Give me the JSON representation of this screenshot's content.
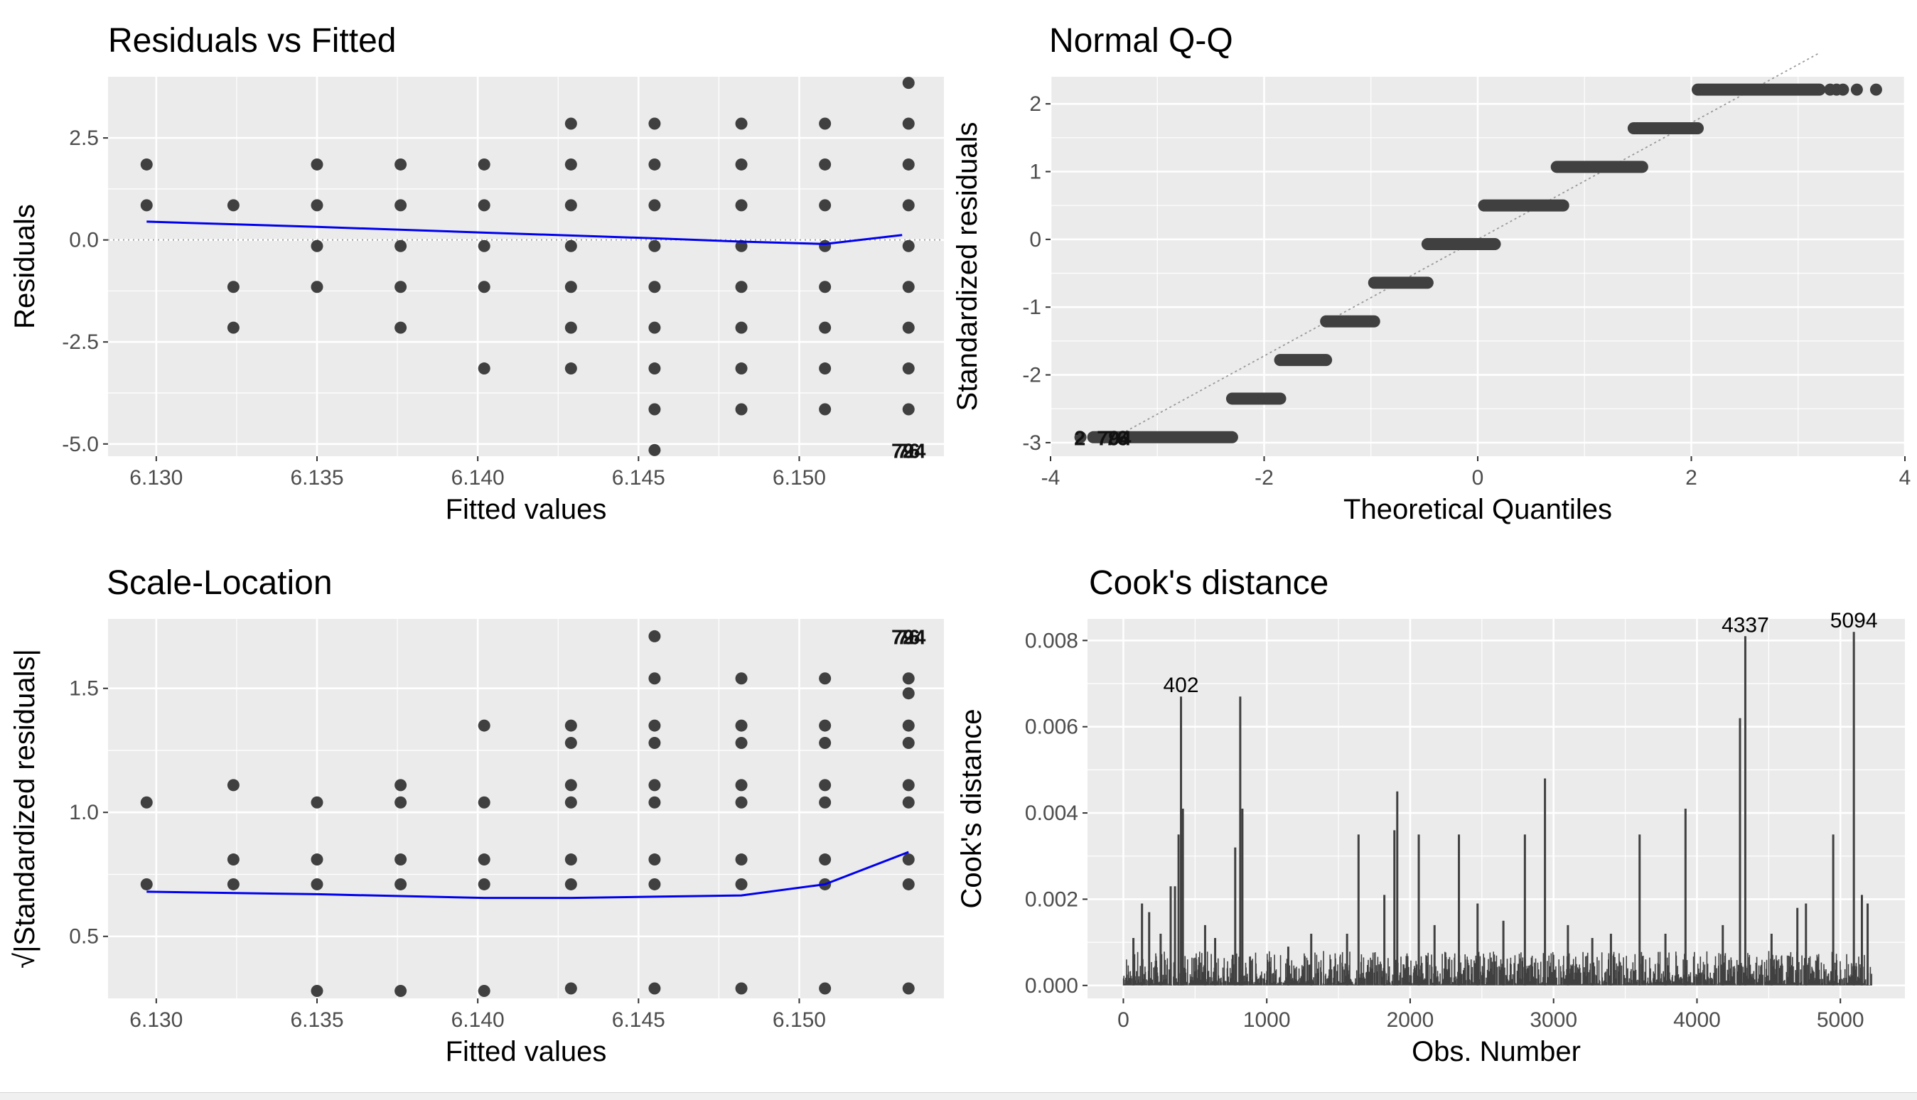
{
  "panels": [
    {
      "title": "Residuals vs Fitted",
      "xlabel": "Fitted values",
      "ylabel": "Residuals",
      "x_ticks": [
        "6.130",
        "6.135",
        "6.140",
        "6.145",
        "6.150"
      ],
      "y_ticks": [
        "2.5",
        "0.0",
        "-2.5",
        "-5.0"
      ],
      "point_labels": [
        "2",
        "794",
        "76"
      ]
    },
    {
      "title": "Normal Q-Q",
      "xlabel": "Theoretical Quantiles",
      "ylabel": "Standardized residuals",
      "x_ticks": [
        "-4",
        "-2",
        "0",
        "2",
        "4"
      ],
      "y_ticks": [
        "2",
        "1",
        "0",
        "-1",
        "-2",
        "-3"
      ],
      "point_labels": [
        "2",
        "794",
        "76"
      ]
    },
    {
      "title": "Scale-Location",
      "xlabel": "Fitted values",
      "ylabel": "√|Standardized residuals|",
      "x_ticks": [
        "6.130",
        "6.135",
        "6.140",
        "6.145",
        "6.150"
      ],
      "y_ticks": [
        "1.5",
        "1.0",
        "0.5"
      ],
      "point_labels": [
        "2",
        "794",
        "76"
      ]
    },
    {
      "title": "Cook's distance",
      "xlabel": "Obs. Number",
      "ylabel": "Cook's distance",
      "x_ticks": [
        "0",
        "1000",
        "2000",
        "3000",
        "4000",
        "5000"
      ],
      "y_ticks": [
        "0.008",
        "0.006",
        "0.004",
        "0.002",
        "0.000"
      ],
      "point_labels": [
        "402",
        "4337",
        "5094"
      ]
    }
  ],
  "colors": {
    "panel_bg": "#ebebeb",
    "grid": "#ffffff",
    "points": "#404040",
    "smooth_line": "#0000ee",
    "reference_line": "#999999",
    "text": "#1a1a1a",
    "tick_text": "#4d4d4d"
  },
  "chart_data": [
    {
      "type": "scatter",
      "title": "Residuals vs Fitted",
      "xlabel": "Fitted values",
      "ylabel": "Residuals",
      "xlim": [
        6.1285,
        6.1545
      ],
      "ylim": [
        -5.3,
        4.0
      ],
      "reference_line": {
        "type": "horizontal",
        "y": 0,
        "style": "dotted"
      },
      "smooth": {
        "x": [
          6.1297,
          6.135,
          6.1402,
          6.1455,
          6.1482,
          6.1508,
          6.1532
        ],
        "y": [
          0.45,
          0.32,
          0.18,
          0.04,
          -0.04,
          -0.1,
          0.12
        ]
      },
      "points": [
        {
          "x": 6.1297,
          "y": [
            1.85,
            0.85
          ]
        },
        {
          "x": 6.1324,
          "y": [
            0.85,
            -1.15,
            -2.15
          ]
        },
        {
          "x": 6.135,
          "y": [
            1.85,
            0.85,
            -0.15,
            -1.15
          ]
        },
        {
          "x": 6.1376,
          "y": [
            1.85,
            0.85,
            -0.15,
            -1.15,
            -2.15
          ]
        },
        {
          "x": 6.1402,
          "y": [
            1.85,
            0.85,
            -0.15,
            -1.15,
            -3.15
          ]
        },
        {
          "x": 6.1429,
          "y": [
            2.85,
            1.85,
            0.85,
            -0.15,
            -1.15,
            -2.15,
            -3.15
          ]
        },
        {
          "x": 6.1455,
          "y": [
            2.85,
            1.85,
            0.85,
            -0.15,
            -1.15,
            -2.15,
            -3.15,
            -4.15,
            -5.15
          ]
        },
        {
          "x": 6.1482,
          "y": [
            2.85,
            1.85,
            0.85,
            -0.15,
            -1.15,
            -2.15,
            -3.15,
            -4.15
          ]
        },
        {
          "x": 6.1508,
          "y": [
            2.85,
            1.85,
            0.85,
            -0.15,
            -1.15,
            -2.15,
            -3.15,
            -4.15
          ]
        },
        {
          "x": 6.1534,
          "y": [
            3.85,
            2.85,
            1.85,
            0.85,
            -0.15,
            -1.15,
            -2.15,
            -3.15,
            -4.15
          ]
        }
      ],
      "labeled": [
        {
          "x": 6.1534,
          "y": -5.15,
          "labels": [
            "2",
            "794",
            "76"
          ]
        }
      ]
    },
    {
      "type": "scatter",
      "title": "Normal Q-Q",
      "xlabel": "Theoretical Quantiles",
      "ylabel": "Standardized residuals",
      "xlim": [
        -4.0,
        4.0
      ],
      "ylim": [
        -3.2,
        2.4
      ],
      "reference_line": {
        "type": "diagonal",
        "intercept": 0,
        "slope": 0.86,
        "style": "dotted"
      },
      "steps": [
        {
          "y": -2.92,
          "x_from": -3.6,
          "x_to": -2.3
        },
        {
          "y": -2.35,
          "x_from": -2.3,
          "x_to": -1.85
        },
        {
          "y": -1.78,
          "x_from": -1.85,
          "x_to": -1.42
        },
        {
          "y": -1.21,
          "x_from": -1.42,
          "x_to": -0.97
        },
        {
          "y": -0.64,
          "x_from": -0.97,
          "x_to": -0.47
        },
        {
          "y": -0.07,
          "x_from": -0.47,
          "x_to": 0.16
        },
        {
          "y": 0.5,
          "x_from": 0.06,
          "x_to": 0.8
        },
        {
          "y": 1.07,
          "x_from": 0.74,
          "x_to": 1.54
        },
        {
          "y": 1.64,
          "x_from": 1.46,
          "x_to": 2.06
        },
        {
          "y": 2.21,
          "x_from": 2.06,
          "x_to": 3.2
        }
      ],
      "extra_points": [
        {
          "x": 3.3,
          "y": 2.21
        },
        {
          "x": 3.36,
          "y": 2.21
        },
        {
          "x": 3.42,
          "y": 2.21
        },
        {
          "x": 3.55,
          "y": 2.21
        },
        {
          "x": 3.73,
          "y": 2.21
        },
        {
          "x": -3.72,
          "y": -2.92
        }
      ],
      "labeled": [
        {
          "x": -3.7,
          "y": -2.92,
          "labels": [
            "2",
            "794",
            "76"
          ]
        }
      ]
    },
    {
      "type": "scatter",
      "title": "Scale-Location",
      "xlabel": "Fitted values",
      "ylabel": "√|Standardized residuals|",
      "xlim": [
        6.1285,
        6.1545
      ],
      "ylim": [
        0.25,
        1.78
      ],
      "smooth": {
        "x": [
          6.1297,
          6.135,
          6.1402,
          6.1429,
          6.1455,
          6.1482,
          6.1508,
          6.1534
        ],
        "y": [
          0.68,
          0.67,
          0.655,
          0.655,
          0.66,
          0.665,
          0.71,
          0.84
        ]
      },
      "points": [
        {
          "x": 6.1297,
          "y": [
            1.04,
            0.71
          ]
        },
        {
          "x": 6.1324,
          "y": [
            1.11,
            0.81,
            0.71
          ]
        },
        {
          "x": 6.135,
          "y": [
            1.04,
            0.81,
            0.71,
            0.28
          ]
        },
        {
          "x": 6.1376,
          "y": [
            1.11,
            1.04,
            0.81,
            0.71,
            0.28
          ]
        },
        {
          "x": 6.1402,
          "y": [
            1.35,
            1.04,
            0.81,
            0.71,
            0.28
          ]
        },
        {
          "x": 6.1429,
          "y": [
            1.35,
            1.28,
            1.11,
            1.04,
            0.81,
            0.71,
            0.29
          ]
        },
        {
          "x": 6.1455,
          "y": [
            1.71,
            1.54,
            1.35,
            1.28,
            1.11,
            1.04,
            0.81,
            0.71,
            0.29
          ]
        },
        {
          "x": 6.1482,
          "y": [
            1.54,
            1.35,
            1.28,
            1.11,
            1.04,
            0.81,
            0.71,
            0.29
          ]
        },
        {
          "x": 6.1508,
          "y": [
            1.54,
            1.35,
            1.28,
            1.11,
            1.04,
            0.81,
            0.71,
            0.29
          ]
        },
        {
          "x": 6.1534,
          "y": [
            1.54,
            1.48,
            1.35,
            1.28,
            1.11,
            1.04,
            0.81,
            0.71,
            0.29
          ]
        }
      ],
      "labeled": [
        {
          "x": 6.1534,
          "y": 1.71,
          "labels": [
            "2",
            "794",
            "76"
          ]
        }
      ]
    },
    {
      "type": "bar",
      "title": "Cook's distance",
      "xlabel": "Obs. Number",
      "ylabel": "Cook's distance",
      "xlim": [
        -250,
        5450
      ],
      "ylim": [
        -0.0003,
        0.0085
      ],
      "n_obs": 5222,
      "baseline_max": 0.0008,
      "spikes": [
        {
          "x": 70,
          "y": 0.0011
        },
        {
          "x": 130,
          "y": 0.0019
        },
        {
          "x": 180,
          "y": 0.0017
        },
        {
          "x": 260,
          "y": 0.0012
        },
        {
          "x": 330,
          "y": 0.0023
        },
        {
          "x": 360,
          "y": 0.0023
        },
        {
          "x": 385,
          "y": 0.0035
        },
        {
          "x": 402,
          "y": 0.0067
        },
        {
          "x": 415,
          "y": 0.0041
        },
        {
          "x": 570,
          "y": 0.0014
        },
        {
          "x": 640,
          "y": 0.0011
        },
        {
          "x": 780,
          "y": 0.0032
        },
        {
          "x": 815,
          "y": 0.0067
        },
        {
          "x": 830,
          "y": 0.0041
        },
        {
          "x": 1150,
          "y": 0.0009
        },
        {
          "x": 1310,
          "y": 0.0012
        },
        {
          "x": 1560,
          "y": 0.0012
        },
        {
          "x": 1640,
          "y": 0.0035
        },
        {
          "x": 1820,
          "y": 0.0021
        },
        {
          "x": 1890,
          "y": 0.0036
        },
        {
          "x": 1910,
          "y": 0.0045
        },
        {
          "x": 2060,
          "y": 0.0035
        },
        {
          "x": 2170,
          "y": 0.0014
        },
        {
          "x": 2340,
          "y": 0.0035
        },
        {
          "x": 2470,
          "y": 0.0019
        },
        {
          "x": 2650,
          "y": 0.0015
        },
        {
          "x": 2800,
          "y": 0.0035
        },
        {
          "x": 2940,
          "y": 0.0048
        },
        {
          "x": 3100,
          "y": 0.0014
        },
        {
          "x": 3270,
          "y": 0.0011
        },
        {
          "x": 3400,
          "y": 0.0012
        },
        {
          "x": 3600,
          "y": 0.0035
        },
        {
          "x": 3780,
          "y": 0.0012
        },
        {
          "x": 3920,
          "y": 0.0041
        },
        {
          "x": 4180,
          "y": 0.0014
        },
        {
          "x": 4300,
          "y": 0.0062
        },
        {
          "x": 4337,
          "y": 0.0081
        },
        {
          "x": 4520,
          "y": 0.0012
        },
        {
          "x": 4700,
          "y": 0.0018
        },
        {
          "x": 4760,
          "y": 0.0019
        },
        {
          "x": 4950,
          "y": 0.0035
        },
        {
          "x": 5094,
          "y": 0.0082
        },
        {
          "x": 5150,
          "y": 0.0021
        },
        {
          "x": 5190,
          "y": 0.0019
        }
      ],
      "labeled": [
        {
          "x": 402,
          "y": 0.0067,
          "label": "402"
        },
        {
          "x": 4337,
          "y": 0.0081,
          "label": "4337"
        },
        {
          "x": 5094,
          "y": 0.0082,
          "label": "5094"
        }
      ]
    }
  ]
}
